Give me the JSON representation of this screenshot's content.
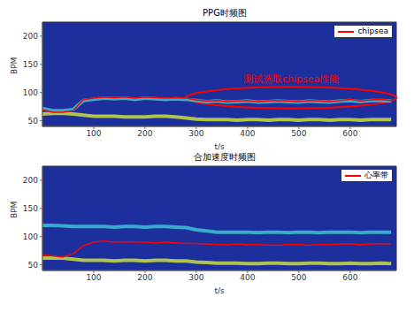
{
  "chart_data": [
    {
      "type": "line",
      "title": "PPG时频图",
      "x_label": "t/s",
      "y_label": "BPM",
      "color": "#1c2f9c",
      "x": [
        0,
        20,
        40,
        60,
        80,
        100,
        120,
        140,
        160,
        180,
        200,
        220,
        240,
        260,
        280,
        300,
        320,
        340,
        360,
        380,
        400,
        420,
        440,
        460,
        480,
        500,
        520,
        540,
        560,
        580,
        600,
        620,
        640,
        660,
        680
      ],
      "xlim": [
        0,
        690
      ],
      "xticks": [
        100,
        200,
        300,
        400,
        500,
        600
      ],
      "ylim": [
        40,
        225
      ],
      "yticks": [
        50,
        100,
        150,
        200
      ],
      "series": [
        {
          "name": "chipsea",
          "color": "#ff0000",
          "values": [
            70,
            65,
            65,
            68,
            88,
            90,
            92,
            91,
            92,
            90,
            92,
            91,
            90,
            91,
            90,
            87,
            85,
            86,
            84,
            85,
            86,
            84,
            85,
            86,
            85,
            84,
            86,
            85,
            84,
            86,
            88,
            85,
            87,
            88,
            86
          ]
        }
      ],
      "spectral_peaks": [
        {
          "color": "#d4e83a",
          "values": [
            62,
            63,
            63,
            62,
            60,
            58,
            58,
            58,
            57,
            57,
            57,
            58,
            58,
            57,
            55,
            53,
            52,
            52,
            52,
            51,
            52,
            52,
            51,
            52,
            52,
            51,
            52,
            52,
            51,
            52,
            52,
            51,
            52,
            52,
            52
          ]
        },
        {
          "color": "#3fc9d9",
          "values": [
            72,
            68,
            68,
            70,
            86,
            88,
            90,
            89,
            90,
            88,
            90,
            89,
            88,
            89,
            88,
            86,
            84,
            85,
            83,
            84,
            85,
            83,
            84,
            85,
            84,
            83,
            85,
            84,
            83,
            85,
            86,
            84,
            86,
            86,
            85
          ]
        }
      ],
      "annotation": {
        "text": "测试选取chipsea性能",
        "color": "#ff0000",
        "xlim": [
          280,
          690
        ],
        "ylim": [
          72,
          110
        ]
      }
    },
    {
      "type": "line",
      "title": "合加速度时频图",
      "x_label": "t/s",
      "y_label": "BPM",
      "color": "#1c2f9c",
      "x": [
        0,
        20,
        40,
        60,
        80,
        100,
        120,
        140,
        160,
        180,
        200,
        220,
        240,
        260,
        280,
        300,
        320,
        340,
        360,
        380,
        400,
        420,
        440,
        460,
        480,
        500,
        520,
        540,
        560,
        580,
        600,
        620,
        640,
        660,
        680
      ],
      "xlim": [
        0,
        690
      ],
      "xticks": [
        100,
        200,
        300,
        400,
        500,
        600
      ],
      "ylim": [
        40,
        225
      ],
      "yticks": [
        50,
        100,
        150,
        200
      ],
      "series": [
        {
          "name": "心率带",
          "color": "#ff0000",
          "values": [
            68,
            66,
            64,
            70,
            84,
            90,
            92,
            90,
            91,
            90,
            90,
            89,
            90,
            89,
            88,
            88,
            87,
            86,
            86,
            87,
            86,
            86,
            85,
            85,
            86,
            86,
            85,
            86,
            86,
            87,
            87,
            86,
            87,
            88,
            87
          ]
        }
      ],
      "spectral_peaks": [
        {
          "color": "#d4e83a",
          "values": [
            62,
            62,
            62,
            60,
            58,
            58,
            58,
            57,
            58,
            58,
            57,
            58,
            58,
            57,
            57,
            55,
            54,
            53,
            53,
            53,
            52,
            52,
            53,
            53,
            52,
            52,
            53,
            53,
            52,
            52,
            53,
            52,
            52,
            53,
            52
          ]
        },
        {
          "color": "#3fc9d9",
          "values": [
            120,
            120,
            119,
            118,
            118,
            118,
            118,
            117,
            118,
            118,
            117,
            118,
            118,
            117,
            116,
            112,
            110,
            108,
            108,
            108,
            108,
            107,
            108,
            108,
            107,
            108,
            108,
            107,
            108,
            108,
            108,
            107,
            108,
            108,
            108
          ]
        }
      ]
    }
  ]
}
